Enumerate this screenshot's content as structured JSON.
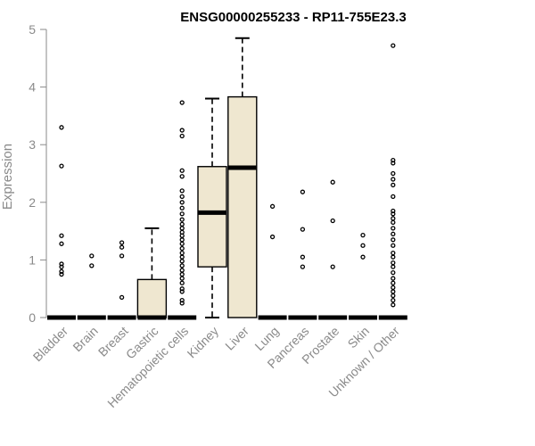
{
  "chart_data": {
    "type": "boxplot",
    "title": "ENSG00000255233 - RP11-755E23.3",
    "ylabel": "Expression",
    "xlabel": "",
    "ylim": [
      0,
      5
    ],
    "yticks": [
      0,
      1,
      2,
      3,
      4,
      5
    ],
    "box_fill": "#efe7d0",
    "categories": [
      "Bladder",
      "Brain",
      "Breast",
      "Gastric",
      "Hematopoietic cells",
      "Kidney",
      "Liver",
      "Lung",
      "Pancreas",
      "Prostate",
      "Skin",
      "Unknown / Other"
    ],
    "boxes": [
      {
        "category": "Bladder",
        "q1": 0,
        "median": 0,
        "q3": 0,
        "whisker_low": 0,
        "whisker_high": 0,
        "outliers": [
          3.3,
          2.63,
          1.42,
          1.28,
          0.93,
          0.88,
          0.8,
          0.75
        ]
      },
      {
        "category": "Brain",
        "q1": 0,
        "median": 0,
        "q3": 0,
        "whisker_low": 0,
        "whisker_high": 0,
        "outliers": [
          1.07,
          0.9
        ]
      },
      {
        "category": "Breast",
        "q1": 0,
        "median": 0,
        "q3": 0,
        "whisker_low": 0,
        "whisker_high": 0,
        "outliers": [
          1.3,
          1.22,
          1.07,
          0.35
        ]
      },
      {
        "category": "Gastric",
        "q1": 0,
        "median": 0,
        "q3": 0.66,
        "whisker_low": 0,
        "whisker_high": 1.55,
        "outliers": []
      },
      {
        "category": "Hematopoietic cells",
        "q1": 0,
        "median": 0,
        "q3": 0,
        "whisker_low": 0,
        "whisker_high": 0,
        "outliers": [
          3.73,
          3.25,
          3.15,
          2.55,
          2.45,
          2.2,
          2.1,
          2.0,
          1.9,
          1.8,
          1.7,
          1.62,
          1.55,
          1.48,
          1.42,
          1.35,
          1.28,
          1.2,
          1.12,
          1.05,
          0.98,
          0.9,
          0.82,
          0.75,
          0.68,
          0.6,
          0.5,
          0.45,
          0.3,
          0.25
        ]
      },
      {
        "category": "Kidney",
        "q1": 0.88,
        "median": 1.82,
        "q3": 2.62,
        "whisker_low": 0,
        "whisker_high": 3.8,
        "outliers": []
      },
      {
        "category": "Liver",
        "q1": 0,
        "median": 2.6,
        "q3": 3.83,
        "whisker_low": 0,
        "whisker_high": 4.85,
        "outliers": []
      },
      {
        "category": "Lung",
        "q1": 0,
        "median": 0,
        "q3": 0,
        "whisker_low": 0,
        "whisker_high": 0,
        "outliers": [
          1.93,
          1.4
        ]
      },
      {
        "category": "Pancreas",
        "q1": 0,
        "median": 0,
        "q3": 0,
        "whisker_low": 0,
        "whisker_high": 0,
        "outliers": [
          2.18,
          1.53,
          1.05,
          0.88
        ]
      },
      {
        "category": "Prostate",
        "q1": 0,
        "median": 0,
        "q3": 0,
        "whisker_low": 0,
        "whisker_high": 0,
        "outliers": [
          2.35,
          1.68,
          0.88
        ]
      },
      {
        "category": "Skin",
        "q1": 0,
        "median": 0,
        "q3": 0,
        "whisker_low": 0,
        "whisker_high": 0,
        "outliers": [
          1.43,
          1.25,
          1.05
        ]
      },
      {
        "category": "Unknown / Other",
        "q1": 0,
        "median": 0,
        "q3": 0,
        "whisker_low": 0,
        "whisker_high": 0,
        "outliers": [
          4.72,
          2.73,
          2.68,
          2.5,
          2.4,
          2.3,
          2.1,
          1.85,
          1.8,
          1.72,
          1.65,
          1.55,
          1.45,
          1.35,
          1.25,
          1.12,
          1.05,
          0.95,
          0.88,
          0.78,
          0.68,
          0.6,
          0.52,
          0.45,
          0.38,
          0.3,
          0.22
        ]
      }
    ]
  }
}
